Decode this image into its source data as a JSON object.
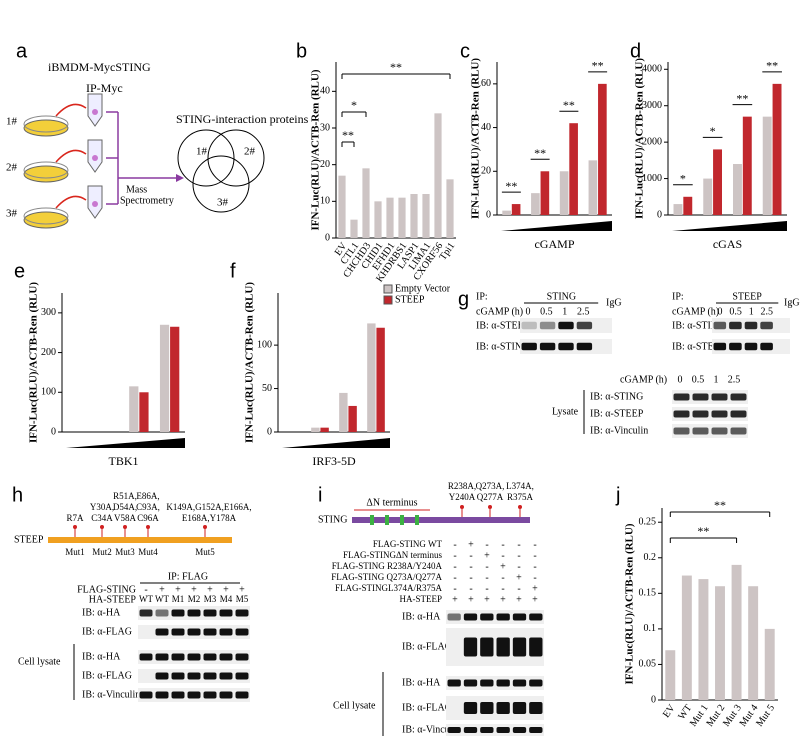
{
  "panel_labels": [
    "a",
    "b",
    "c",
    "d",
    "e",
    "f",
    "g",
    "h",
    "i",
    "j"
  ],
  "panel_a": {
    "cell_line": "iBMDM-MycSTING",
    "ip": "IP-Myc",
    "dishes": [
      "1#",
      "2#",
      "3#"
    ],
    "method": [
      "Mass",
      "Spectrometry"
    ],
    "venn_title": "STING-interaction proteins",
    "venn_sets": [
      "1#",
      "2#",
      "3#"
    ]
  },
  "chart_data": [
    {
      "type": "bar",
      "ylabel": "IFN-Luc(RLU)/ACTB-Ren (RLU)",
      "categories": [
        "EV",
        "CTL1",
        "CHCHD3",
        "CHID1",
        "EFHD1",
        "KHDRBS1",
        "LASP1",
        "LIMA1",
        "CXORF56",
        "Tpi1"
      ],
      "values": [
        17,
        5,
        19,
        10,
        11,
        11,
        12,
        12,
        34,
        16
      ],
      "color": "#cdc4c4",
      "ylim": [
        0,
        48
      ],
      "yticks": [
        0,
        10,
        20,
        30,
        40
      ],
      "annotations": [
        "**",
        "*",
        "**"
      ]
    },
    {
      "type": "grouped-bar",
      "ylabel": "IFN-Luc(RLU)/ACTB-Ren (RLU)",
      "xlabel": "cGAMP",
      "series": [
        {
          "color": "#cdc4c4",
          "values": [
            2,
            10,
            20,
            25
          ]
        },
        {
          "color": "#c1272d",
          "values": [
            5,
            20,
            42,
            60
          ]
        }
      ],
      "ylim": [
        0,
        70
      ],
      "yticks": [
        0,
        20,
        40,
        60
      ],
      "annotations": [
        "**",
        "**",
        "**",
        "**"
      ]
    },
    {
      "type": "grouped-bar",
      "ylabel": "IFN-Luc(RLU)/ACTB-Ren (RLU)",
      "xlabel": "cGAS",
      "series": [
        {
          "color": "#cdc4c4",
          "values": [
            300,
            1000,
            1400,
            2700
          ]
        },
        {
          "color": "#c1272d",
          "values": [
            500,
            1800,
            2700,
            3600
          ]
        }
      ],
      "ylim": [
        0,
        4200
      ],
      "yticks": [
        0,
        1000,
        2000,
        3000,
        4000
      ],
      "annotations": [
        "*",
        "*",
        "**",
        "**"
      ]
    },
    {
      "type": "grouped-bar",
      "ylabel": "IFN-Luc(RLU)/ACTB-Ren (RLU)",
      "xlabel": "TBK1",
      "series": [
        {
          "color": "#cdc4c4",
          "values": [
            0,
            0,
            115,
            270
          ]
        },
        {
          "color": "#c1272d",
          "values": [
            0,
            0,
            100,
            265
          ]
        }
      ],
      "ylim": [
        0,
        350
      ],
      "yticks": [
        0,
        100,
        200,
        300
      ]
    },
    {
      "type": "grouped-bar",
      "ylabel": "IFN-Luc(RLU)/ACTB-Ren (RLU)",
      "xlabel": "IRF3-5D",
      "series": [
        {
          "name": "Empty Vector",
          "color": "#cdc4c4",
          "values": [
            0,
            5,
            45,
            125
          ]
        },
        {
          "name": "STEEP",
          "color": "#c1272d",
          "values": [
            0,
            5,
            30,
            120
          ]
        }
      ],
      "ylim": [
        0,
        160
      ],
      "yticks": [
        0,
        50,
        100
      ],
      "legend": "top-right"
    },
    {
      "type": "bar",
      "ylabel": "IFN-Luc(RLU)/ACTB-Ren (RLU)",
      "categories": [
        "EV",
        "WT",
        "Mut 1",
        "Mut 2",
        "Mut 3",
        "Mut 4",
        "Mut 5"
      ],
      "values": [
        0.07,
        0.175,
        0.17,
        0.16,
        0.19,
        0.16,
        0.1
      ],
      "color": "#cdc4c4",
      "ylim": [
        0,
        0.27
      ],
      "yticks": [
        0,
        0.05,
        0.1,
        0.15,
        0.2,
        0.25
      ],
      "annotations": [
        "**",
        "**"
      ]
    }
  ],
  "panel_g": {
    "left": {
      "ip": "IP:",
      "target": "STING",
      "igg": "IgG",
      "time_label": "cGAMP (h)",
      "times": [
        "0",
        "0.5",
        "1",
        "2.5"
      ],
      "rows": [
        "IB: α-STEEP",
        "IB: α-STING"
      ]
    },
    "right": {
      "ip": "IP:",
      "target": "STEEP",
      "igg": "IgG",
      "time_label": "cGAMP (h)",
      "times": [
        "0",
        "0.5",
        "1",
        "2.5"
      ],
      "rows": [
        "IB: α-STING",
        "IB: α-STEEP"
      ]
    },
    "lysate": {
      "time_label": "cGAMP (h)",
      "times": [
        "0",
        "0.5",
        "1",
        "2.5"
      ],
      "label": "Lysate",
      "rows": [
        "IB: α-STING",
        "IB: α-STEEP",
        "IB: α-Vinculin"
      ]
    }
  },
  "panel_h": {
    "protein": "STEEP",
    "mutations": [
      [
        "R7A"
      ],
      [
        "Y30A,",
        "C34A"
      ],
      [
        "R51A,",
        "D54A,",
        "V58A"
      ],
      [
        "E86A,",
        "C93A,",
        "C96A"
      ],
      [
        "K149A,G152A,E166A,",
        "E168A,Y178A"
      ]
    ],
    "mutants": [
      "Mut1",
      "Mut2",
      "Mut3",
      "Mut4",
      "Mut5"
    ],
    "ip": "IP: FLAG",
    "rows": [
      "FLAG-STING",
      "HA-STEEP"
    ],
    "flag_sting": [
      "-",
      "+",
      "+",
      "+",
      "+",
      "+",
      "+"
    ],
    "ha_steep": [
      "WT",
      "WT",
      "M1",
      "M2",
      "M3",
      "M4",
      "M5"
    ],
    "blots": [
      "IB: α-HA",
      "IB: α-FLAG",
      "IB: α-HA",
      "IB: α-FLAG",
      "IB: α-Vinculin"
    ],
    "lysate": "Cell lysate"
  },
  "panel_i": {
    "protein": "STING",
    "deletion": "ΔN terminus",
    "mutations": [
      [
        "R238A,",
        "Y240A"
      ],
      [
        "Q273A,",
        "Q277A"
      ],
      [
        "L374A,",
        "R375A"
      ]
    ],
    "constructs": [
      {
        "name": "FLAG-STING WT",
        "signs": [
          "-",
          "+",
          "-",
          "-",
          "-",
          "-"
        ]
      },
      {
        "name": "FLAG-STINGΔN terminus",
        "signs": [
          "-",
          "-",
          "+",
          "-",
          "-",
          "-"
        ]
      },
      {
        "name": "FLAG-STING R238A/Y240A",
        "signs": [
          "-",
          "-",
          "-",
          "+",
          "-",
          "-"
        ]
      },
      {
        "name": "FLAG-STING Q273A/Q277A",
        "signs": [
          "-",
          "-",
          "-",
          "-",
          "+",
          "-"
        ]
      },
      {
        "name": "FLAG-STINGL374A/R375A",
        "signs": [
          "-",
          "-",
          "-",
          "-",
          "-",
          "+"
        ]
      },
      {
        "name": "HA-STEEP",
        "signs": [
          "+",
          "+",
          "+",
          "+",
          "+",
          "+"
        ]
      }
    ],
    "blots": [
      "IB: α-HA",
      "IB: α-FLAG",
      "IB: α-HA",
      "IB: α-FLAG",
      "IB: α-Vinculin"
    ],
    "lysate": "Cell lysate"
  }
}
